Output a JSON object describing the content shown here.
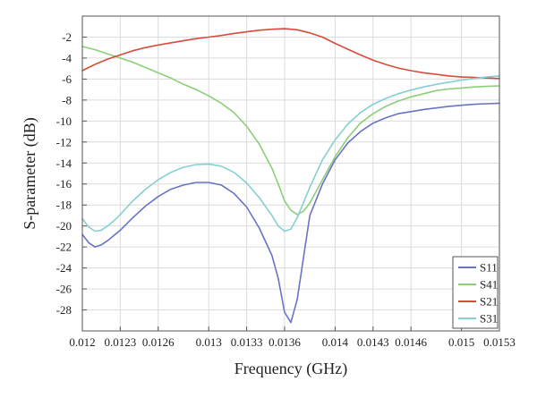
{
  "chart_data": {
    "type": "line",
    "title": "",
    "xlabel": "Frequency (GHz)",
    "ylabel": "S-parameter (dB)",
    "xlim": [
      0.012,
      0.0153
    ],
    "ylim": [
      -30,
      0
    ],
    "xticks": [
      0.012,
      0.0123,
      0.0126,
      0.013,
      0.0133,
      0.0136,
      0.014,
      0.0143,
      0.0146,
      0.015,
      0.0153
    ],
    "xtick_labels": [
      "0.012",
      "0.0123",
      "0.0126",
      "0.013",
      "0.0133",
      "0.0136",
      "0.014",
      "0.0143",
      "0.0146",
      "0.015",
      "0.0153"
    ],
    "yticks": [
      -2,
      -4,
      -6,
      -8,
      -10,
      -12,
      -14,
      -16,
      -18,
      -20,
      -22,
      -24,
      -26,
      -28
    ],
    "ytick_labels": [
      "-2",
      "-4",
      "-6",
      "-8",
      "-10",
      "-12",
      "-14",
      "-16",
      "-18",
      "-20",
      "-22",
      "-24",
      "-26",
      "-28"
    ],
    "grid": true,
    "legend_position": "bottom-right",
    "series": [
      {
        "name": "S11",
        "color": "#6a73c4",
        "x": [
          0.012,
          0.01205,
          0.0121,
          0.01215,
          0.0122,
          0.01225,
          0.0123,
          0.0124,
          0.0125,
          0.0126,
          0.0127,
          0.0128,
          0.0129,
          0.013,
          0.0131,
          0.0132,
          0.0133,
          0.0134,
          0.0135,
          0.01355,
          0.0136,
          0.01365,
          0.0137,
          0.01375,
          0.0138,
          0.0139,
          0.014,
          0.0141,
          0.0142,
          0.0143,
          0.0144,
          0.0145,
          0.0146,
          0.0147,
          0.0148,
          0.0149,
          0.015,
          0.0151,
          0.0152,
          0.0153
        ],
        "y": [
          -20.8,
          -21.6,
          -22.0,
          -21.8,
          -21.4,
          -20.9,
          -20.4,
          -19.2,
          -18.1,
          -17.2,
          -16.5,
          -16.1,
          -15.85,
          -15.85,
          -16.1,
          -16.9,
          -18.2,
          -20.2,
          -22.8,
          -25.0,
          -28.2,
          -29.2,
          -27.0,
          -23.0,
          -19.0,
          -16.0,
          -13.7,
          -12.1,
          -11.0,
          -10.2,
          -9.7,
          -9.3,
          -9.1,
          -8.9,
          -8.75,
          -8.6,
          -8.5,
          -8.4,
          -8.35,
          -8.3
        ]
      },
      {
        "name": "S41",
        "color": "#8ccf78",
        "x": [
          0.012,
          0.0121,
          0.0122,
          0.0123,
          0.0124,
          0.0125,
          0.0126,
          0.0127,
          0.0128,
          0.0129,
          0.013,
          0.0131,
          0.0132,
          0.0133,
          0.0134,
          0.0135,
          0.01355,
          0.0136,
          0.01365,
          0.0137,
          0.01375,
          0.0138,
          0.0139,
          0.014,
          0.0141,
          0.0142,
          0.0143,
          0.0144,
          0.0145,
          0.0146,
          0.0147,
          0.0148,
          0.0149,
          0.015,
          0.0151,
          0.0152,
          0.0153
        ],
        "y": [
          -2.9,
          -3.2,
          -3.6,
          -4.0,
          -4.4,
          -4.9,
          -5.4,
          -5.9,
          -6.5,
          -7.0,
          -7.6,
          -8.3,
          -9.2,
          -10.5,
          -12.2,
          -14.5,
          -16.0,
          -17.6,
          -18.5,
          -18.9,
          -18.6,
          -17.8,
          -15.6,
          -13.4,
          -11.6,
          -10.2,
          -9.3,
          -8.6,
          -8.1,
          -7.7,
          -7.4,
          -7.1,
          -6.95,
          -6.85,
          -6.75,
          -6.7,
          -6.65
        ]
      },
      {
        "name": "S21",
        "color": "#d84b3c",
        "x": [
          0.012,
          0.0121,
          0.0122,
          0.0123,
          0.0124,
          0.0125,
          0.0126,
          0.0127,
          0.0128,
          0.0129,
          0.013,
          0.0131,
          0.0132,
          0.0133,
          0.0134,
          0.0135,
          0.0136,
          0.0137,
          0.0138,
          0.0139,
          0.014,
          0.0141,
          0.0142,
          0.0143,
          0.0144,
          0.0145,
          0.0146,
          0.0147,
          0.0148,
          0.0149,
          0.015,
          0.0151,
          0.0152,
          0.0153
        ],
        "y": [
          -5.2,
          -4.6,
          -4.1,
          -3.7,
          -3.3,
          -3.0,
          -2.75,
          -2.55,
          -2.35,
          -2.15,
          -2.0,
          -1.85,
          -1.65,
          -1.5,
          -1.35,
          -1.25,
          -1.2,
          -1.3,
          -1.6,
          -2.0,
          -2.6,
          -3.15,
          -3.7,
          -4.2,
          -4.6,
          -4.95,
          -5.2,
          -5.4,
          -5.55,
          -5.7,
          -5.8,
          -5.85,
          -5.9,
          -5.95
        ]
      },
      {
        "name": "S31",
        "color": "#86cfd2",
        "x": [
          0.012,
          0.01205,
          0.0121,
          0.01215,
          0.0122,
          0.01225,
          0.0123,
          0.0124,
          0.0125,
          0.0126,
          0.0127,
          0.0128,
          0.0129,
          0.013,
          0.0131,
          0.0132,
          0.0133,
          0.0134,
          0.0135,
          0.01355,
          0.0136,
          0.01365,
          0.0137,
          0.0138,
          0.0139,
          0.014,
          0.0141,
          0.0142,
          0.0143,
          0.0144,
          0.0145,
          0.0146,
          0.0147,
          0.0148,
          0.0149,
          0.015,
          0.0151,
          0.0152,
          0.0153
        ],
        "y": [
          -19.3,
          -20.1,
          -20.5,
          -20.4,
          -20.0,
          -19.5,
          -18.9,
          -17.6,
          -16.5,
          -15.6,
          -14.9,
          -14.4,
          -14.15,
          -14.1,
          -14.3,
          -14.9,
          -15.9,
          -17.3,
          -19.0,
          -20.0,
          -20.5,
          -20.3,
          -19.2,
          -16.3,
          -13.7,
          -11.8,
          -10.3,
          -9.2,
          -8.4,
          -7.85,
          -7.4,
          -7.05,
          -6.75,
          -6.5,
          -6.3,
          -6.1,
          -5.95,
          -5.8,
          -5.7
        ]
      }
    ]
  }
}
